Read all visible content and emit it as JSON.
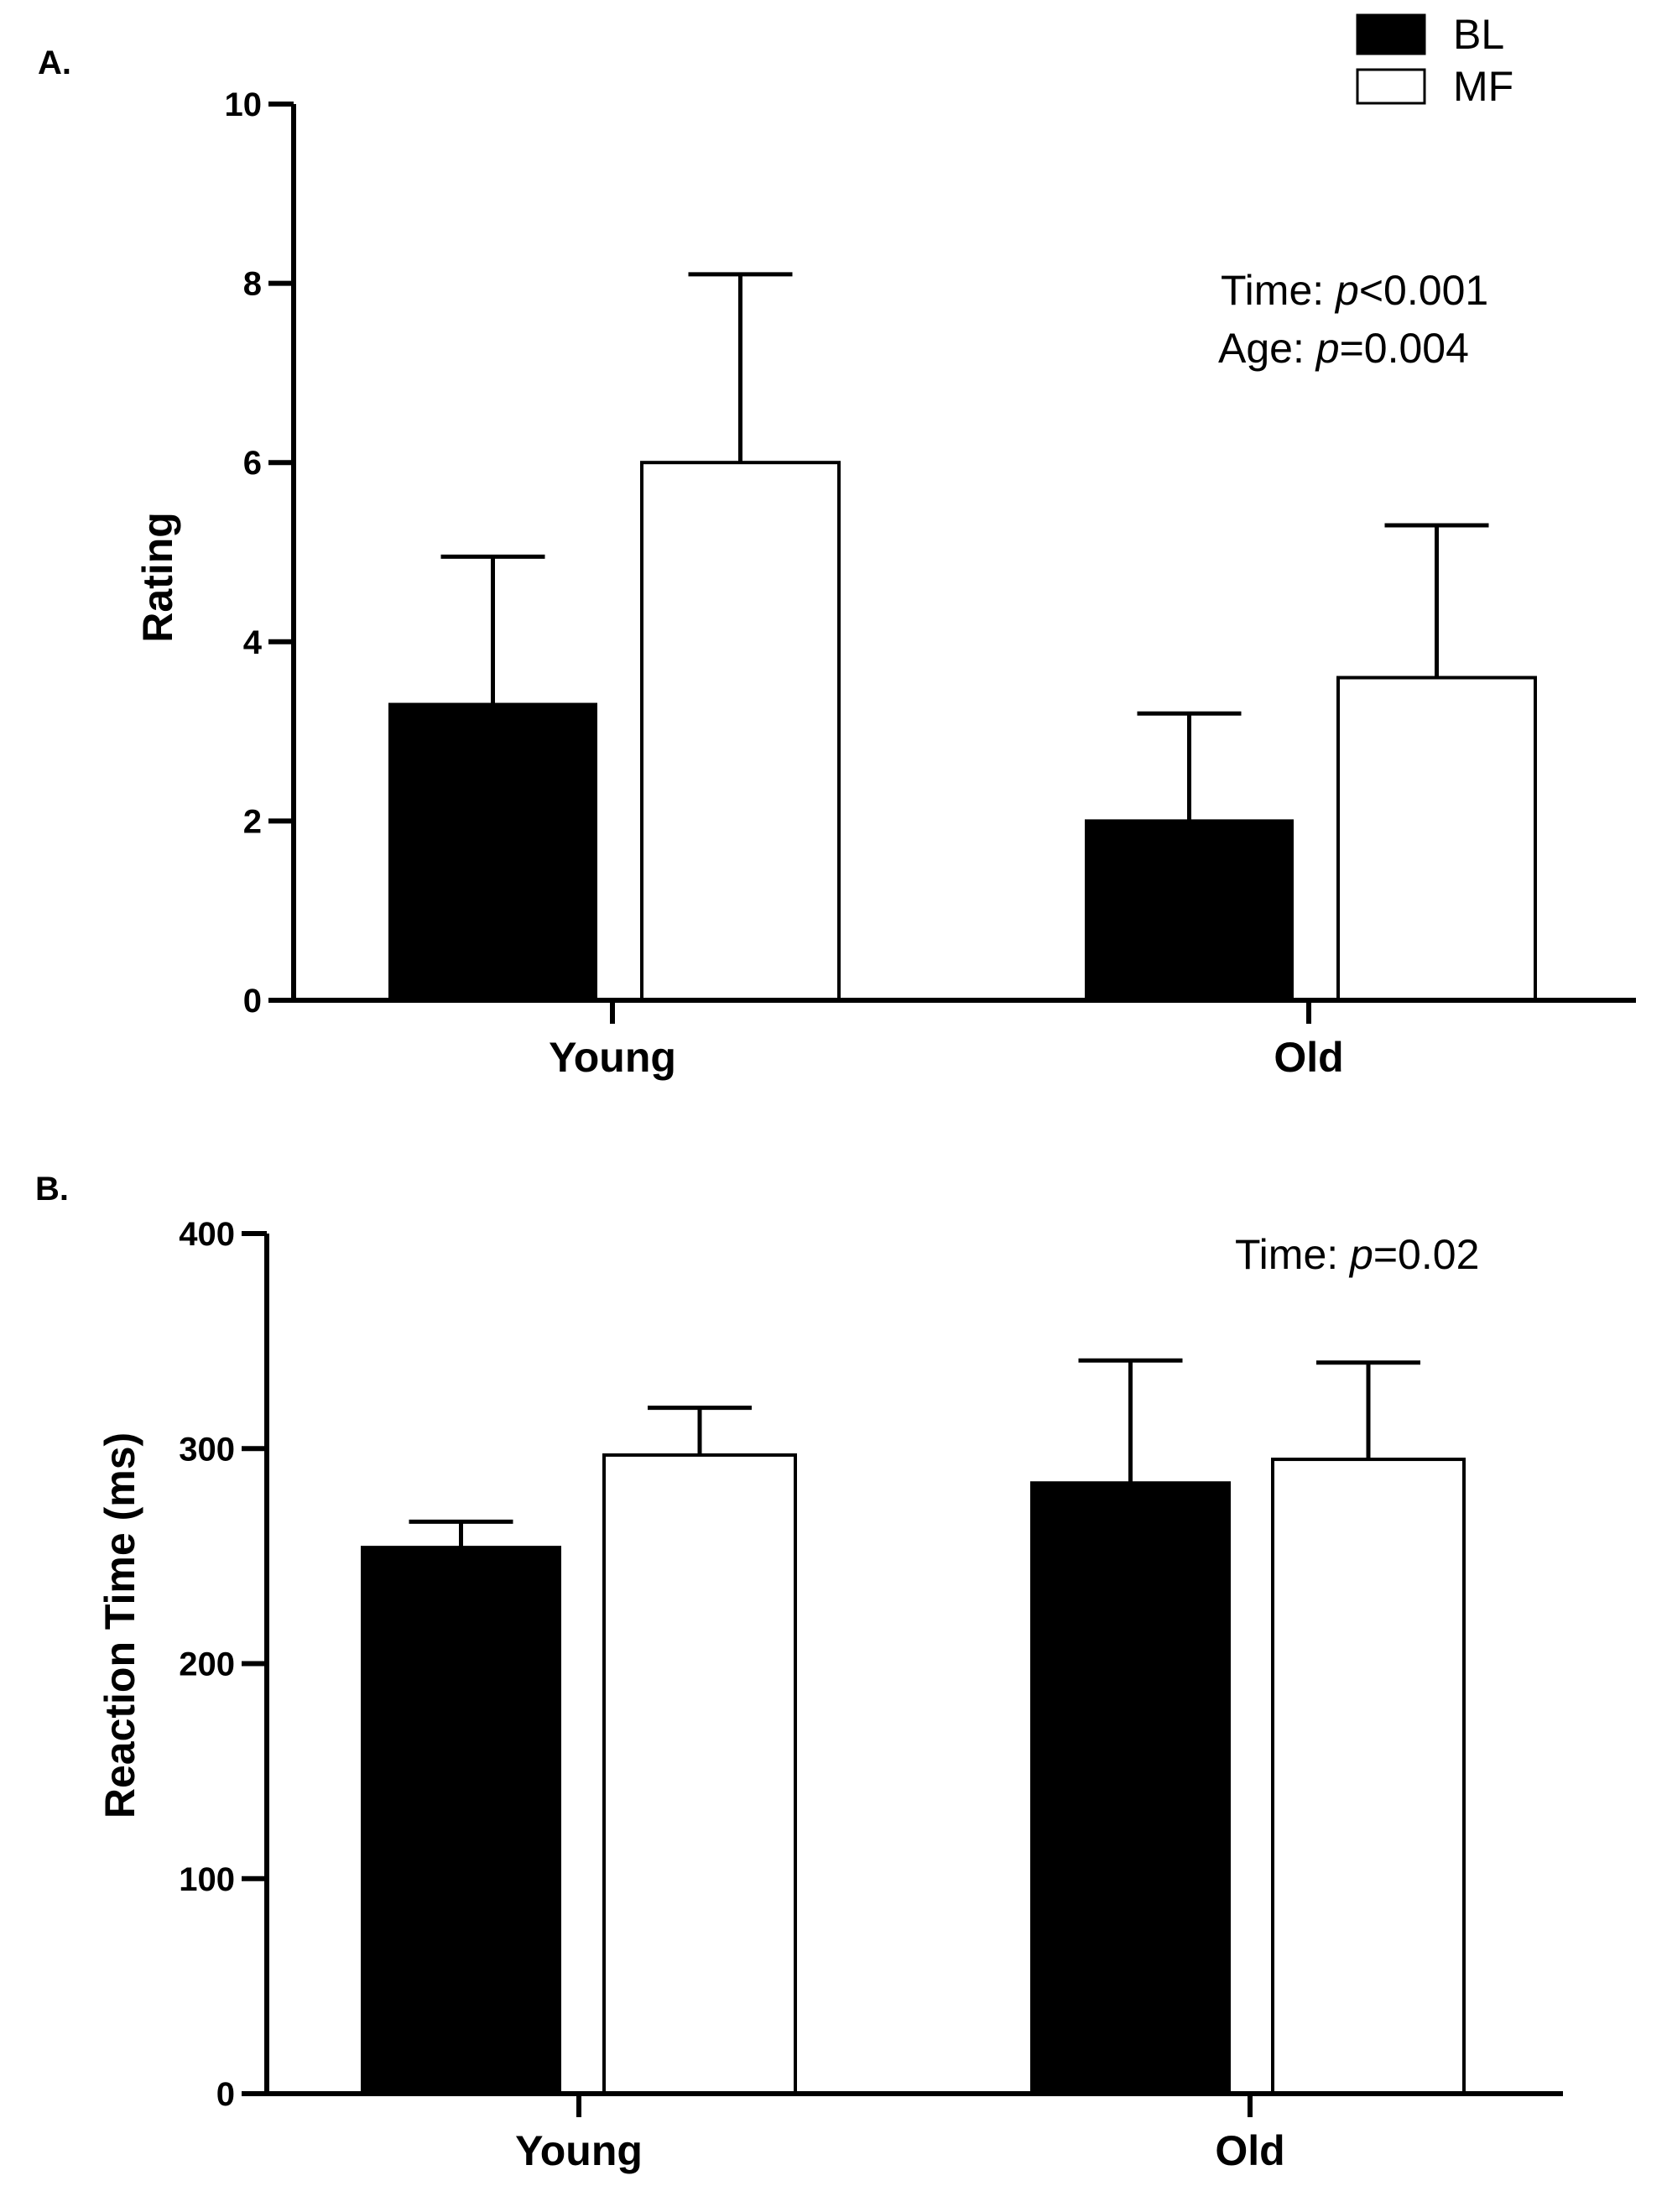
{
  "legend": {
    "items": [
      {
        "label": "BL",
        "fill": "#000000"
      },
      {
        "label": "MF",
        "fill": "#ffffff"
      }
    ]
  },
  "chart_data": [
    {
      "panel": "A.",
      "type": "bar",
      "categories": [
        "Young",
        "Old"
      ],
      "series": [
        {
          "name": "BL",
          "values": [
            3.3,
            2.0
          ],
          "errors": [
            1.65,
            1.2
          ],
          "color": "#000000"
        },
        {
          "name": "MF",
          "values": [
            6.0,
            3.6
          ],
          "errors": [
            2.1,
            1.7
          ],
          "color": "#ffffff"
        }
      ],
      "xlabel": "",
      "ylabel": "Rating",
      "ylim": [
        0,
        10
      ],
      "yticks": [
        0,
        2,
        4,
        6,
        8,
        10
      ],
      "annotations": [
        {
          "prefix": "Time: ",
          "italic": "p",
          "suffix": "<0.001"
        },
        {
          "prefix": "Age: ",
          "italic": "p",
          "suffix": "=0.004"
        }
      ],
      "grid": false,
      "legend": "top-right"
    },
    {
      "panel": "B.",
      "type": "bar",
      "categories": [
        "Young",
        "Old"
      ],
      "series": [
        {
          "name": "BL",
          "values": [
            254,
            284
          ],
          "errors": [
            12,
            57
          ],
          "color": "#000000"
        },
        {
          "name": "MF",
          "values": [
            297,
            295
          ],
          "errors": [
            22,
            45
          ],
          "color": "#ffffff"
        }
      ],
      "xlabel": "",
      "ylabel": "Reaction Time (ms)",
      "ylim": [
        0,
        400
      ],
      "yticks": [
        0,
        100,
        200,
        300,
        400
      ],
      "annotations": [
        {
          "prefix": "Time: ",
          "italic": "p",
          "suffix": "=0.02"
        }
      ],
      "grid": false
    }
  ]
}
